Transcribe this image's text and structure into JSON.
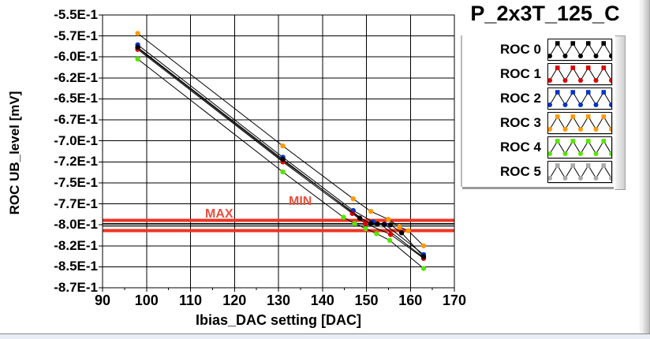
{
  "panel": {
    "title": "P_2x3T_125_C"
  },
  "chart_data": {
    "type": "line",
    "title": "P_2x3T_125_C",
    "xlabel": "Ibias_DAC setting [DAC]",
    "ylabel": "ROC UB_level [mV]",
    "xlim": [
      90,
      170
    ],
    "ylim": [
      -0.875,
      -0.55
    ],
    "grid": true,
    "legend_position": "right",
    "x_ticks": [
      90,
      100,
      110,
      120,
      130,
      140,
      150,
      160,
      170
    ],
    "x_minor_step": 5,
    "y_ticks": [
      {
        "value": -0.55,
        "label": "-5.5E-1"
      },
      {
        "value": -0.575,
        "label": "-5.7E-1"
      },
      {
        "value": -0.6,
        "label": "-6.0E-1"
      },
      {
        "value": -0.625,
        "label": "-6.2E-1"
      },
      {
        "value": -0.65,
        "label": "-6.5E-1"
      },
      {
        "value": -0.675,
        "label": "-6.7E-1"
      },
      {
        "value": -0.7,
        "label": "-7.0E-1"
      },
      {
        "value": -0.725,
        "label": "-7.2E-1"
      },
      {
        "value": -0.75,
        "label": "-7.5E-1"
      },
      {
        "value": -0.775,
        "label": "-7.7E-1"
      },
      {
        "value": -0.8,
        "label": "-8.0E-1"
      },
      {
        "value": -0.825,
        "label": "-8.2E-1"
      },
      {
        "value": -0.85,
        "label": "-8.5E-1"
      },
      {
        "value": -0.875,
        "label": "-8.7E-1"
      }
    ],
    "line_color": "#000000",
    "series": [
      {
        "name": "ROC 0",
        "marker_color": "#000000",
        "points": [
          [
            98,
            -0.5885
          ],
          [
            131,
            -0.722
          ],
          [
            148.5,
            -0.792
          ],
          [
            151,
            -0.7985
          ],
          [
            152.5,
            -0.799
          ],
          [
            154,
            -0.7995
          ],
          [
            155.5,
            -0.8
          ],
          [
            158,
            -0.8095
          ],
          [
            163,
            -0.838
          ]
        ]
      },
      {
        "name": "ROC 1",
        "marker_color": "#dd0000",
        "points": [
          [
            98,
            -0.591
          ],
          [
            131,
            -0.725
          ],
          [
            146.8,
            -0.7865
          ],
          [
            149.8,
            -0.7985
          ],
          [
            155.5,
            -0.8115
          ],
          [
            163,
            -0.84
          ]
        ]
      },
      {
        "name": "ROC 2",
        "marker_color": "#0033cc",
        "points": [
          [
            98,
            -0.5855
          ],
          [
            131,
            -0.7195
          ],
          [
            147,
            -0.783
          ],
          [
            151.5,
            -0.7965
          ],
          [
            154.2,
            -0.7995
          ],
          [
            163,
            -0.8355
          ]
        ]
      },
      {
        "name": "ROC 3",
        "marker_color": "#ff9900",
        "points": [
          [
            98,
            -0.572
          ],
          [
            131,
            -0.706
          ],
          [
            147,
            -0.769
          ],
          [
            151,
            -0.784
          ],
          [
            155,
            -0.7935
          ],
          [
            157.5,
            -0.8025
          ],
          [
            159.5,
            -0.807
          ],
          [
            163,
            -0.825
          ]
        ]
      },
      {
        "name": "ROC 4",
        "marker_color": "#55e600",
        "points": [
          [
            98,
            -0.6025
          ],
          [
            131,
            -0.737
          ],
          [
            144.8,
            -0.791
          ],
          [
            147.3,
            -0.7985
          ],
          [
            149.8,
            -0.8045
          ],
          [
            152.3,
            -0.8105
          ],
          [
            155.3,
            -0.8185
          ],
          [
            163,
            -0.852
          ]
        ]
      },
      {
        "name": "ROC 5",
        "marker_color": "#aaaaaa",
        "points": [
          [
            98,
            -0.5895
          ],
          [
            131,
            -0.7235
          ],
          [
            150.5,
            -0.7985
          ],
          [
            153.5,
            -0.8005
          ],
          [
            163,
            -0.839
          ]
        ]
      }
    ],
    "limits": {
      "max_label": "MAX",
      "min_label": "MIN",
      "max_value": -0.7945,
      "min_value": -0.807,
      "cursor_values": [
        -0.7985,
        -0.8015
      ],
      "line_color": "#ee3322",
      "label_color": "#e8503c"
    }
  },
  "legend": {
    "items": [
      {
        "label": "ROC 0",
        "color": "#000000"
      },
      {
        "label": "ROC 1",
        "color": "#dd0000"
      },
      {
        "label": "ROC 2",
        "color": "#0033cc"
      },
      {
        "label": "ROC 3",
        "color": "#ff9900"
      },
      {
        "label": "ROC 4",
        "color": "#55e600"
      },
      {
        "label": "ROC 5",
        "color": "#aaaaaa"
      }
    ]
  }
}
